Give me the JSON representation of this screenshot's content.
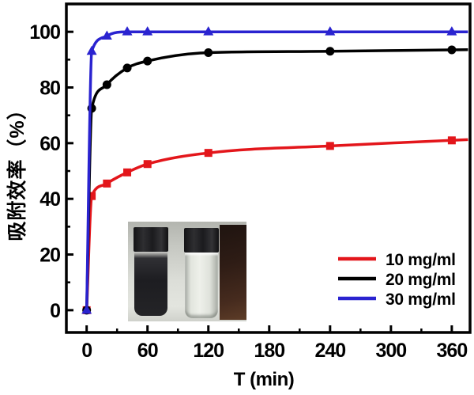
{
  "chart_data": {
    "type": "line",
    "title": "",
    "xlabel": "T (min)",
    "ylabel": "吸附效率（%）",
    "x": [
      0,
      5,
      20,
      40,
      60,
      120,
      240,
      360
    ],
    "series": [
      {
        "name": "10 mg/ml",
        "color": "#e3161b",
        "marker": "square",
        "values": [
          0,
          41,
          45.5,
          49.5,
          52.5,
          56.5,
          59,
          61
        ]
      },
      {
        "name": "20 mg/ml",
        "color": "#000000",
        "marker": "circle",
        "values": [
          0,
          72.5,
          81,
          87,
          89.5,
          92.5,
          93,
          93.5
        ]
      },
      {
        "name": "30 mg/ml",
        "color": "#2a23d0",
        "marker": "triangle",
        "values": [
          0,
          93,
          98.5,
          100,
          100,
          100,
          100,
          100
        ]
      }
    ],
    "x_ticks": [
      0,
      60,
      120,
      180,
      240,
      300,
      360
    ],
    "y_ticks": [
      0,
      20,
      40,
      60,
      80,
      100
    ],
    "x_minor_ticks": [
      30,
      90,
      150,
      210,
      270,
      330
    ],
    "y_minor_ticks": [
      10,
      30,
      50,
      70,
      90
    ],
    "xlim": [
      -20,
      378
    ],
    "ylim": [
      -8,
      110
    ],
    "grid": false,
    "legend_position": "lower right",
    "legend": [
      "10 mg/ml",
      "20 mg/ml",
      "30 mg/ml"
    ]
  },
  "inset_photo": {
    "items": [
      "dark-sample-vial",
      "clear-sample-vial",
      "dark-brown-block"
    ]
  }
}
